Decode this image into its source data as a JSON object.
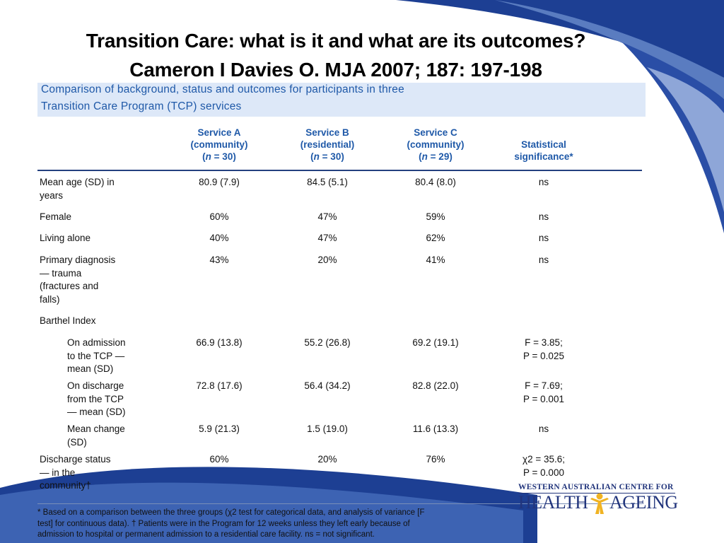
{
  "slide": {
    "title_line1": "Transition Care: what is it and what are its outcomes?",
    "title_line2": "Cameron I Davies O. MJA 2007; 187: 197-198"
  },
  "caption": {
    "line1": "Comparison of background, status and outcomes for participants in three",
    "line2": "Transition Care Program (TCP) services"
  },
  "headers": {
    "service_a": {
      "line1": "Service A",
      "line2": "(community)",
      "n_label": "n",
      "n_value": " = 30)"
    },
    "service_b": {
      "line1": "Service B",
      "line2": "(residential)",
      "n_label": "n",
      "n_value": " = 30)"
    },
    "service_c": {
      "line1": "Service C",
      "line2": "(community)",
      "n_label": "n",
      "n_value": " = 29)"
    },
    "significance": {
      "line1": "Statistical",
      "line2": "significance*"
    }
  },
  "rows": [
    {
      "label": [
        "Mean age (SD) in",
        "years"
      ],
      "a": "80.9 (7.9)",
      "b": "84.5 (5.1)",
      "c": "80.4 (8.0)",
      "sig": [
        "ns"
      ]
    },
    {
      "label": [
        "Female"
      ],
      "a": "60%",
      "b": "47%",
      "c": "59%",
      "sig": [
        "ns"
      ]
    },
    {
      "label": [
        "Living alone"
      ],
      "a": "40%",
      "b": "47%",
      "c": "62%",
      "sig": [
        "ns"
      ]
    },
    {
      "label": [
        "Primary diagnosis",
        "— trauma",
        "(fractures and",
        "falls)"
      ],
      "a": "43%",
      "b": "20%",
      "c": "41%",
      "sig": [
        "ns"
      ]
    },
    {
      "label": [
        "Barthel Index"
      ],
      "a": "",
      "b": "",
      "c": "",
      "sig": [
        ""
      ]
    },
    {
      "label": [
        "On admission",
        "to the TCP —",
        "mean (SD)"
      ],
      "a": "66.9 (13.8)",
      "b": "55.2 (26.8)",
      "c": "69.2 (19.1)",
      "sig": [
        "F = 3.85;",
        "P = 0.025"
      ]
    },
    {
      "label": [
        "On discharge",
        "from the TCP",
        "— mean (SD)"
      ],
      "a": "72.8 (17.6)",
      "b": "56.4 (34.2)",
      "c": "82.8 (22.0)",
      "sig": [
        "F = 7.69;",
        "P = 0.001"
      ]
    },
    {
      "label": [
        "Mean change",
        "(SD)"
      ],
      "a": "5.9 (21.3)",
      "b": "1.5 (19.0)",
      "c": "11.6 (13.3)",
      "sig": [
        "ns"
      ]
    },
    {
      "label": [
        "Discharge status",
        "— in the",
        "community†"
      ],
      "a": "60%",
      "b": "20%",
      "c": "76%",
      "sig": [
        "χ2 = 35.6;",
        "P = 0.000"
      ]
    }
  ],
  "footnote": {
    "line1": "* Based on a comparison between the three groups (χ2 test for categorical data, and analysis of variance [F",
    "line2": "test] for continuous data). † Patients were in the Program for 12 weeks unless they left early because of",
    "line3": "admission to hospital or permanent admission to a residential care facility. ns = not significant."
  },
  "logo": {
    "top_text": "WESTERN AUSTRALIAN CENTRE FOR",
    "word_left": "HEALTH",
    "word_right": "AGEING"
  },
  "colors": {
    "accent_blue": "#1f59a8",
    "navy": "#22357c",
    "caption_bg": "#dde8f8",
    "logo_gold": "#f0b323"
  }
}
